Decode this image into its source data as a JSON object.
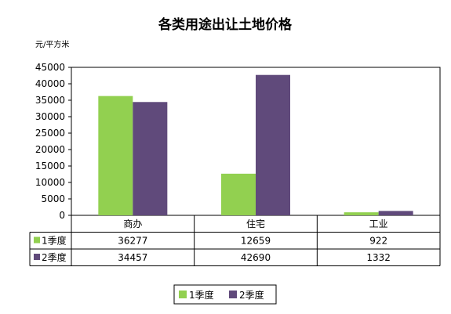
{
  "chart_data": {
    "type": "bar",
    "title": "各类用途出让土地价格",
    "unit_label": "元/平方米",
    "categories": [
      "商办",
      "住宅",
      "工业"
    ],
    "series": [
      {
        "name": "1季度",
        "values": [
          36277,
          12659,
          922
        ],
        "color": "#92d050"
      },
      {
        "name": "2季度",
        "values": [
          34457,
          42690,
          1332
        ],
        "color": "#604a7b"
      }
    ],
    "ylim": [
      0,
      45000
    ],
    "y_ticks": [
      0,
      5000,
      10000,
      15000,
      20000,
      25000,
      30000,
      35000,
      40000,
      45000
    ],
    "grid": false,
    "legend_position": "bottom",
    "data_table": true
  }
}
